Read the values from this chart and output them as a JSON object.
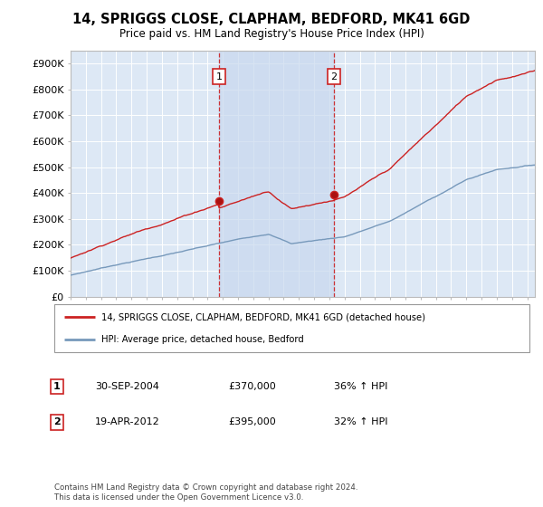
{
  "title": "14, SPRIGGS CLOSE, CLAPHAM, BEDFORD, MK41 6GD",
  "subtitle": "Price paid vs. HM Land Registry's House Price Index (HPI)",
  "ylabel_ticks": [
    "£0",
    "£100K",
    "£200K",
    "£300K",
    "£400K",
    "£500K",
    "£600K",
    "£700K",
    "£800K",
    "£900K"
  ],
  "ytick_values": [
    0,
    100000,
    200000,
    300000,
    400000,
    500000,
    600000,
    700000,
    800000,
    900000
  ],
  "ylim": [
    0,
    950000
  ],
  "xlim_start": 1995.0,
  "xlim_end": 2025.5,
  "xticks": [
    1995,
    1996,
    1997,
    1998,
    1999,
    2000,
    2001,
    2002,
    2003,
    2004,
    2005,
    2006,
    2007,
    2008,
    2009,
    2010,
    2011,
    2012,
    2013,
    2014,
    2015,
    2016,
    2017,
    2018,
    2019,
    2020,
    2021,
    2022,
    2023,
    2024,
    2025
  ],
  "background_color": "#ffffff",
  "plot_bg_color": "#dde8f5",
  "grid_color": "#ffffff",
  "shade_color": "#c8d8ee",
  "red_line_color": "#cc2222",
  "blue_line_color": "#7799bb",
  "vline_color": "#cc2222",
  "marker1_x": 2004.75,
  "marker1_y": 370000,
  "marker2_x": 2012.3,
  "marker2_y": 395000,
  "legend_line1": "14, SPRIGGS CLOSE, CLAPHAM, BEDFORD, MK41 6GD (detached house)",
  "legend_line2": "HPI: Average price, detached house, Bedford",
  "marker1_label": "1",
  "marker1_date": "30-SEP-2004",
  "marker1_price": "£370,000",
  "marker1_hpi": "36% ↑ HPI",
  "marker2_label": "2",
  "marker2_date": "19-APR-2012",
  "marker2_price": "£395,000",
  "marker2_hpi": "32% ↑ HPI",
  "footnote": "Contains HM Land Registry data © Crown copyright and database right 2024.\nThis data is licensed under the Open Government Licence v3.0."
}
